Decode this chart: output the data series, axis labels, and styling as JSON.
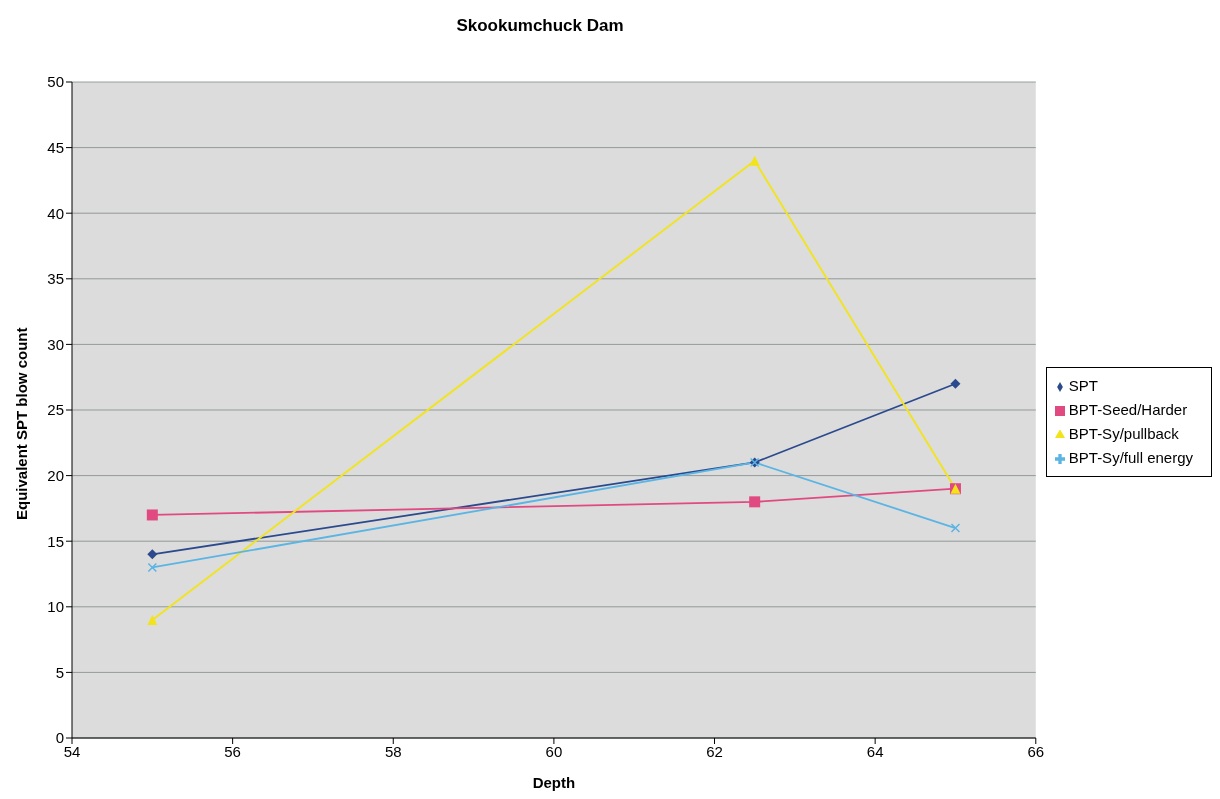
{
  "chart_data": {
    "type": "line",
    "title": "Skookumchuck Dam",
    "xlabel": "Depth",
    "ylabel": "Equivalent SPT blow count",
    "x": [
      55,
      62.5,
      65
    ],
    "series": [
      {
        "name": "SPT",
        "color": "#2b4a8e",
        "values": [
          14,
          21,
          27
        ],
        "marker": "diamond"
      },
      {
        "name": "BPT-Seed/Harder",
        "color": "#e04a80",
        "values": [
          17,
          18,
          19
        ],
        "marker": "square"
      },
      {
        "name": "BPT-Sy/pullback",
        "color": "#f2e418",
        "values": [
          9,
          44,
          19
        ],
        "marker": "triangle"
      },
      {
        "name": "BPT-Sy/full energy",
        "color": "#5ab4e4",
        "values": [
          13,
          21,
          16
        ],
        "marker": "cross"
      }
    ],
    "xlim": [
      54,
      66
    ],
    "xticks": [
      54,
      56,
      58,
      60,
      62,
      64,
      66
    ],
    "ylim": [
      0,
      50
    ],
    "yticks": [
      0,
      5,
      10,
      15,
      20,
      25,
      30,
      35,
      40,
      45,
      50
    ],
    "grid": "y",
    "legend": "right",
    "line_style": "solid"
  }
}
